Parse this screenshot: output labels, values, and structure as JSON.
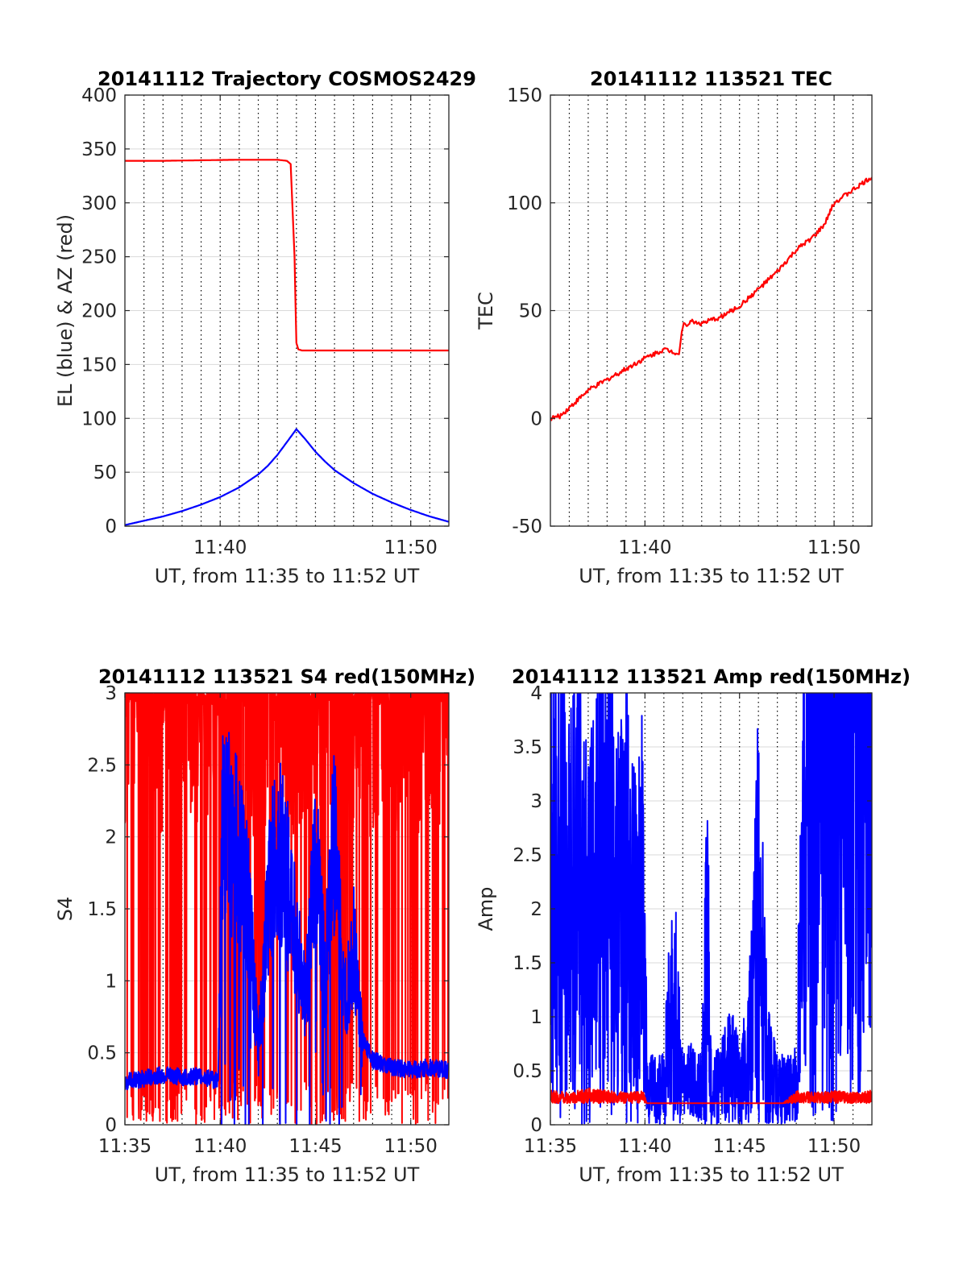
{
  "figure": {
    "colors": {
      "el": "#0000ff",
      "az": "#ff0000",
      "amp_blue": "#0000ff",
      "amp_red": "#ff0000",
      "grid_minor": "#000000",
      "grid_major": "#d9d9d9"
    }
  },
  "chart_data": [
    {
      "type": "line",
      "title": "20141112 Trajectory COSMOS2429",
      "xlabel": "UT, from 11:35 to 11:52 UT",
      "ylabel": "EL (blue) & AZ (red)",
      "xlim": [
        0,
        17
      ],
      "ylim": [
        0,
        400
      ],
      "xticks": [
        {
          "value": 5,
          "label": "11:40"
        },
        {
          "value": 15,
          "label": "11:50"
        }
      ],
      "yticks": [
        {
          "value": 0,
          "label": "0"
        },
        {
          "value": 50,
          "label": "50"
        },
        {
          "value": 100,
          "label": "100"
        },
        {
          "value": 150,
          "label": "150"
        },
        {
          "value": 200,
          "label": "200"
        },
        {
          "value": 250,
          "label": "250"
        },
        {
          "value": 300,
          "label": "300"
        },
        {
          "value": 350,
          "label": "350"
        },
        {
          "value": 400,
          "label": "400"
        }
      ],
      "grid": true,
      "series": [
        {
          "color": "#ff0000",
          "x": [
            0,
            2,
            4,
            6,
            7,
            8,
            8.5,
            8.7,
            8.9,
            9.0,
            9.1,
            9.3,
            10,
            12,
            14,
            17
          ],
          "y": [
            339,
            339,
            339.5,
            340,
            340,
            340,
            339,
            336,
            250,
            170,
            164,
            163,
            163,
            163,
            163,
            163
          ]
        },
        {
          "color": "#0000ff",
          "x": [
            0,
            1,
            2,
            3,
            4,
            5,
            6,
            7,
            7.5,
            8,
            8.5,
            9,
            9.5,
            10,
            10.5,
            11,
            12,
            13,
            14,
            15,
            16,
            17
          ],
          "y": [
            1,
            5,
            9,
            14,
            20,
            27,
            36,
            48,
            56,
            66,
            78,
            90,
            80,
            69,
            60,
            52,
            40,
            30,
            22,
            15,
            9,
            4
          ]
        }
      ]
    },
    {
      "type": "line",
      "title": "20141112 113521 TEC",
      "xlabel": "UT, from 11:35 to 11:52 UT",
      "ylabel": "TEC",
      "xlim": [
        0,
        17
      ],
      "ylim": [
        -50,
        150
      ],
      "xticks": [
        {
          "value": 5,
          "label": "11:40"
        },
        {
          "value": 15,
          "label": "11:50"
        }
      ],
      "yticks": [
        {
          "value": -50,
          "label": "-50"
        },
        {
          "value": 0,
          "label": "0"
        },
        {
          "value": 50,
          "label": "50"
        },
        {
          "value": 100,
          "label": "100"
        },
        {
          "value": 150,
          "label": "150"
        }
      ],
      "grid": true,
      "series": [
        {
          "color": "#ff0000",
          "x": [
            0,
            0.5,
            1,
            1.5,
            2,
            3,
            4,
            5,
            5.5,
            6,
            6.5,
            6.8,
            7,
            7.5,
            8,
            9,
            10,
            11,
            12,
            13,
            14,
            14.5,
            15,
            16,
            17
          ],
          "y": [
            0,
            1,
            5,
            9,
            13,
            18,
            23,
            28,
            30,
            32,
            31,
            30,
            43,
            45,
            44,
            47,
            52,
            60,
            68,
            78,
            85,
            90,
            100,
            106,
            112
          ]
        }
      ]
    },
    {
      "type": "line",
      "title": "20141112 113521 S4 red(150MHz)",
      "xlabel": "UT, from 11:35 to 11:52 UT",
      "ylabel": "S4",
      "xlim": [
        0,
        17
      ],
      "ylim": [
        0,
        3
      ],
      "xticks": [
        {
          "value": 0,
          "label": "11:35"
        },
        {
          "value": 5,
          "label": "11:40"
        },
        {
          "value": 10,
          "label": "11:45"
        },
        {
          "value": 15,
          "label": "11:50"
        }
      ],
      "yticks": [
        {
          "value": 0,
          "label": "0"
        },
        {
          "value": 0.5,
          "label": "0.5"
        },
        {
          "value": 1,
          "label": "1"
        },
        {
          "value": 1.5,
          "label": "1.5"
        },
        {
          "value": 2,
          "label": "2"
        },
        {
          "value": 2.5,
          "label": "2.5"
        },
        {
          "value": 3,
          "label": "3"
        }
      ],
      "grid": true,
      "series": [
        {
          "color": "#ff0000",
          "x": [
            0,
            1,
            2,
            3,
            4,
            4.5,
            5,
            6,
            7,
            8,
            9,
            10,
            11,
            12,
            13,
            13.5,
            14,
            15,
            16,
            17
          ],
          "y": [
            3,
            3,
            3,
            3,
            3,
            3,
            3,
            3,
            3,
            3,
            2,
            3,
            3,
            3,
            3,
            3,
            3,
            3,
            3,
            3
          ]
        },
        {
          "color": "#0000ff",
          "x": [
            0,
            1,
            2,
            3,
            4,
            4.9,
            5.1,
            6,
            6.5,
            7,
            7.5,
            8,
            8.5,
            9,
            9.5,
            10,
            10.5,
            11,
            11.5,
            12,
            12.5,
            13,
            14,
            15,
            16,
            17
          ],
          "y": [
            0.3,
            0.32,
            0.35,
            0.33,
            0.34,
            0.3,
            2.5,
            2.2,
            1.8,
            0.6,
            1.8,
            2.3,
            2.0,
            1.5,
            1.0,
            2.2,
            1.2,
            2.4,
            1.0,
            1.5,
            0.6,
            0.45,
            0.4,
            0.38,
            0.4,
            0.38
          ]
        }
      ]
    },
    {
      "type": "line",
      "title": "20141112 113521 Amp red(150MHz)",
      "xlabel": "UT, from 11:35 to 11:52 UT",
      "ylabel": "Amp",
      "xlim": [
        0,
        17
      ],
      "ylim": [
        0,
        4
      ],
      "xticks": [
        {
          "value": 0,
          "label": "11:35"
        },
        {
          "value": 5,
          "label": "11:40"
        },
        {
          "value": 10,
          "label": "11:45"
        },
        {
          "value": 15,
          "label": "11:50"
        }
      ],
      "yticks": [
        {
          "value": 0,
          "label": "0"
        },
        {
          "value": 0.5,
          "label": "0.5"
        },
        {
          "value": 1,
          "label": "1"
        },
        {
          "value": 1.5,
          "label": "1.5"
        },
        {
          "value": 2,
          "label": "2"
        },
        {
          "value": 2.5,
          "label": "2.5"
        },
        {
          "value": 3,
          "label": "3"
        },
        {
          "value": 3.5,
          "label": "3.5"
        },
        {
          "value": 4,
          "label": "4"
        }
      ],
      "grid": true,
      "series": [
        {
          "color": "#0000ff",
          "x": [
            0,
            0.5,
            1,
            1.5,
            2,
            2.5,
            3,
            3.5,
            4,
            4.5,
            4.9,
            5.1,
            6,
            6.5,
            7,
            7.5,
            8,
            8.3,
            8.5,
            9,
            9.5,
            10,
            10.5,
            11,
            11.5,
            12,
            12.5,
            13,
            13.5,
            14,
            14.5,
            15,
            15.5,
            16,
            16.5,
            17
          ],
          "y": [
            2.5,
            2.2,
            1.8,
            2.3,
            1.5,
            2.0,
            2.3,
            1.6,
            2.1,
            1.5,
            2.2,
            0.3,
            0.3,
            1.15,
            0.3,
            0.35,
            0.3,
            1.5,
            0.3,
            0.35,
            0.5,
            0.4,
            0.6,
            1.8,
            0.5,
            0.3,
            0.3,
            0.35,
            2.5,
            2.8,
            2.6,
            3.0,
            2.7,
            3.3,
            2.8,
            2.9
          ]
        },
        {
          "color": "#ff0000",
          "x": [
            0,
            1,
            2,
            3,
            4,
            4.9,
            5.1,
            12,
            12.3,
            13,
            14,
            15,
            16,
            17
          ],
          "y": [
            0.12,
            0.1,
            0.14,
            0.12,
            0.1,
            0.12,
            0,
            0,
            0,
            0.12,
            0.1,
            0.12,
            0.1,
            0.12
          ]
        }
      ]
    }
  ]
}
